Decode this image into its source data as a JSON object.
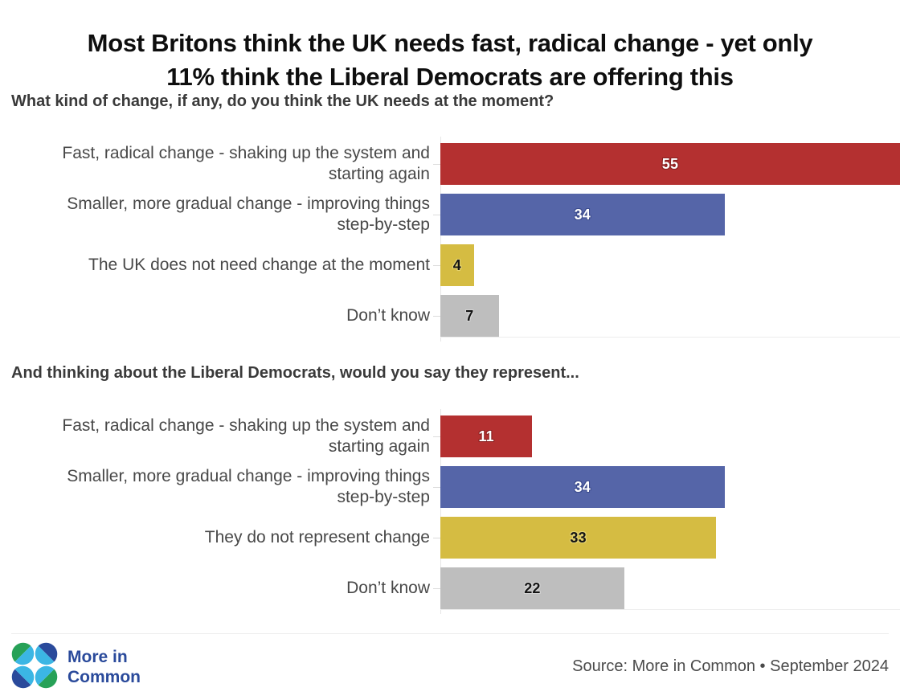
{
  "page": {
    "title_lines": [
      "Most Britons think the UK needs fast, radical change - yet only",
      "11% think the Liberal Democrats are offering this"
    ]
  },
  "chart_data": [
    {
      "type": "bar",
      "orientation": "horizontal",
      "title": "What kind of change, if any, do you think the UK needs at the moment?",
      "categories": [
        "Fast, radical change - shaking up the system and starting again",
        "Smaller, more gradual change - improving things step-by-step",
        "The UK does not need change at the moment",
        "Don’t know"
      ],
      "category_lines": [
        [
          "Fast, radical change - shaking up the system and",
          "starting again"
        ],
        [
          "Smaller, more gradual change - improving things",
          "step-by-step"
        ],
        [
          "The UK does not need change at the moment"
        ],
        [
          "Don’t know"
        ]
      ],
      "values": [
        55,
        34,
        4,
        7
      ],
      "bar_colors": [
        "#b43030",
        "#5565a8",
        "#d5bc42",
        "#bebebe"
      ],
      "value_text_colors": [
        "#ffffff",
        "#ffffff",
        "#141414",
        "#141414"
      ],
      "value_halo_colors": [
        "#8a2020",
        "#3c4c8e",
        "#e6d472",
        "#d4d4d4"
      ],
      "xlim": [
        0,
        55
      ],
      "grid": false,
      "value_label_position": "inside-center"
    },
    {
      "type": "bar",
      "orientation": "horizontal",
      "title": "And thinking about the Liberal Democrats, would you say they represent...",
      "categories": [
        "Fast, radical change - shaking up the system and starting again",
        "Smaller, more gradual change - improving things step-by-step",
        "They do not represent change",
        "Don’t know"
      ],
      "category_lines": [
        [
          "Fast, radical change - shaking up the system and",
          "starting again"
        ],
        [
          "Smaller, more gradual change - improving things",
          "step-by-step"
        ],
        [
          "They do not represent change"
        ],
        [
          "Don’t know"
        ]
      ],
      "values": [
        11,
        34,
        33,
        22
      ],
      "bar_colors": [
        "#b43030",
        "#5565a8",
        "#d5bc42",
        "#bebebe"
      ],
      "value_text_colors": [
        "#ffffff",
        "#ffffff",
        "#141414",
        "#141414"
      ],
      "value_halo_colors": [
        "#8a2020",
        "#3c4c8e",
        "#e6d472",
        "#d4d4d4"
      ],
      "xlim": [
        0,
        55
      ],
      "grid": false,
      "value_label_position": "inside-center"
    }
  ],
  "footer": {
    "logo": {
      "wordmark_lines": [
        "More in",
        "Common"
      ],
      "colors": {
        "green": "#27a157",
        "cyan": "#3bb6e4",
        "navy": "#2a4a9b"
      }
    },
    "source": "Source: More in Common • September 2024"
  }
}
